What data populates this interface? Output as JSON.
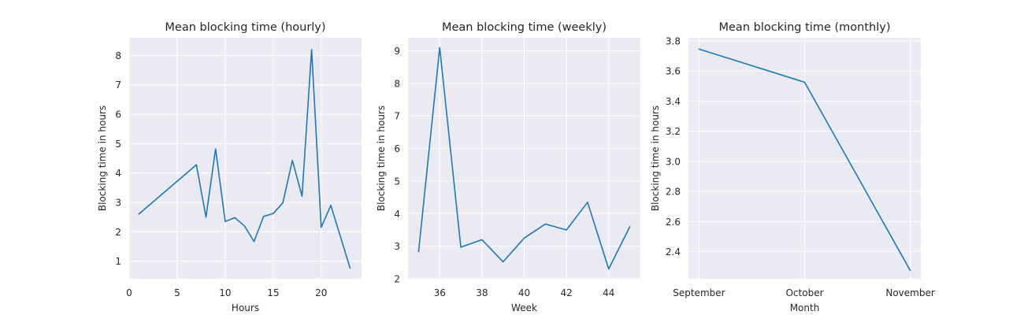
{
  "chart_data": [
    {
      "type": "line",
      "title": "Mean blocking time (hourly)",
      "xlabel": "Hours",
      "ylabel": "Blocking time in hours",
      "x_scale": "linear",
      "xlim": [
        0,
        24.2
      ],
      "ylim": [
        0.4,
        8.6
      ],
      "xticks": [
        0,
        5,
        10,
        15,
        20
      ],
      "xtick_labels": [
        "0",
        "5",
        "10",
        "15",
        "20"
      ],
      "yticks": [
        1,
        2,
        3,
        4,
        5,
        6,
        7,
        8
      ],
      "ytick_labels": [
        "1",
        "2",
        "3",
        "4",
        "5",
        "6",
        "7",
        "8"
      ],
      "grid": true,
      "series": [
        {
          "x": [
            1,
            7,
            8,
            9,
            10,
            11,
            12,
            13,
            14,
            15,
            16,
            17,
            18,
            19,
            20,
            21,
            23
          ],
          "y": [
            2.6,
            4.28,
            2.5,
            4.82,
            2.35,
            2.48,
            2.2,
            1.67,
            2.52,
            2.62,
            2.98,
            4.43,
            3.21,
            8.2,
            2.15,
            2.9,
            0.77
          ]
        }
      ],
      "color": "#1f77b4"
    },
    {
      "type": "line",
      "title": "Mean blocking time (weekly)",
      "xlabel": "Week",
      "ylabel": "Blocking time in hours",
      "x_scale": "linear",
      "xlim": [
        34.5,
        45.5
      ],
      "ylim": [
        2.0,
        9.4
      ],
      "xticks": [
        36,
        38,
        40,
        42,
        44
      ],
      "xtick_labels": [
        "36",
        "38",
        "40",
        "42",
        "44"
      ],
      "yticks": [
        2,
        3,
        4,
        5,
        6,
        7,
        8,
        9
      ],
      "ytick_labels": [
        "2",
        "3",
        "4",
        "5",
        "6",
        "7",
        "8",
        "9"
      ],
      "grid": true,
      "series": [
        {
          "x": [
            35,
            36,
            37,
            38,
            39,
            40,
            41,
            42,
            43,
            44,
            45
          ],
          "y": [
            2.83,
            9.1,
            2.97,
            3.2,
            2.52,
            3.25,
            3.68,
            3.5,
            4.35,
            2.3,
            3.6
          ]
        }
      ],
      "color": "#1f77b4"
    },
    {
      "type": "line",
      "title": "Mean blocking time (monthly)",
      "xlabel": "Month",
      "ylabel": "Blocking time in hours",
      "x_scale": "category",
      "categories": [
        "September",
        "October",
        "November"
      ],
      "xlim": [
        -0.1,
        2.1
      ],
      "ylim": [
        2.22,
        3.82
      ],
      "yticks": [
        2.4,
        2.6,
        2.8,
        3.0,
        3.2,
        3.4,
        3.6,
        3.8
      ],
      "ytick_labels": [
        "2.4",
        "2.6",
        "2.8",
        "3.0",
        "3.2",
        "3.4",
        "3.6",
        "3.8"
      ],
      "grid": true,
      "series": [
        {
          "x": [
            0,
            1,
            2
          ],
          "y": [
            3.745,
            3.525,
            2.275
          ]
        }
      ],
      "color": "#1f77b4"
    }
  ]
}
